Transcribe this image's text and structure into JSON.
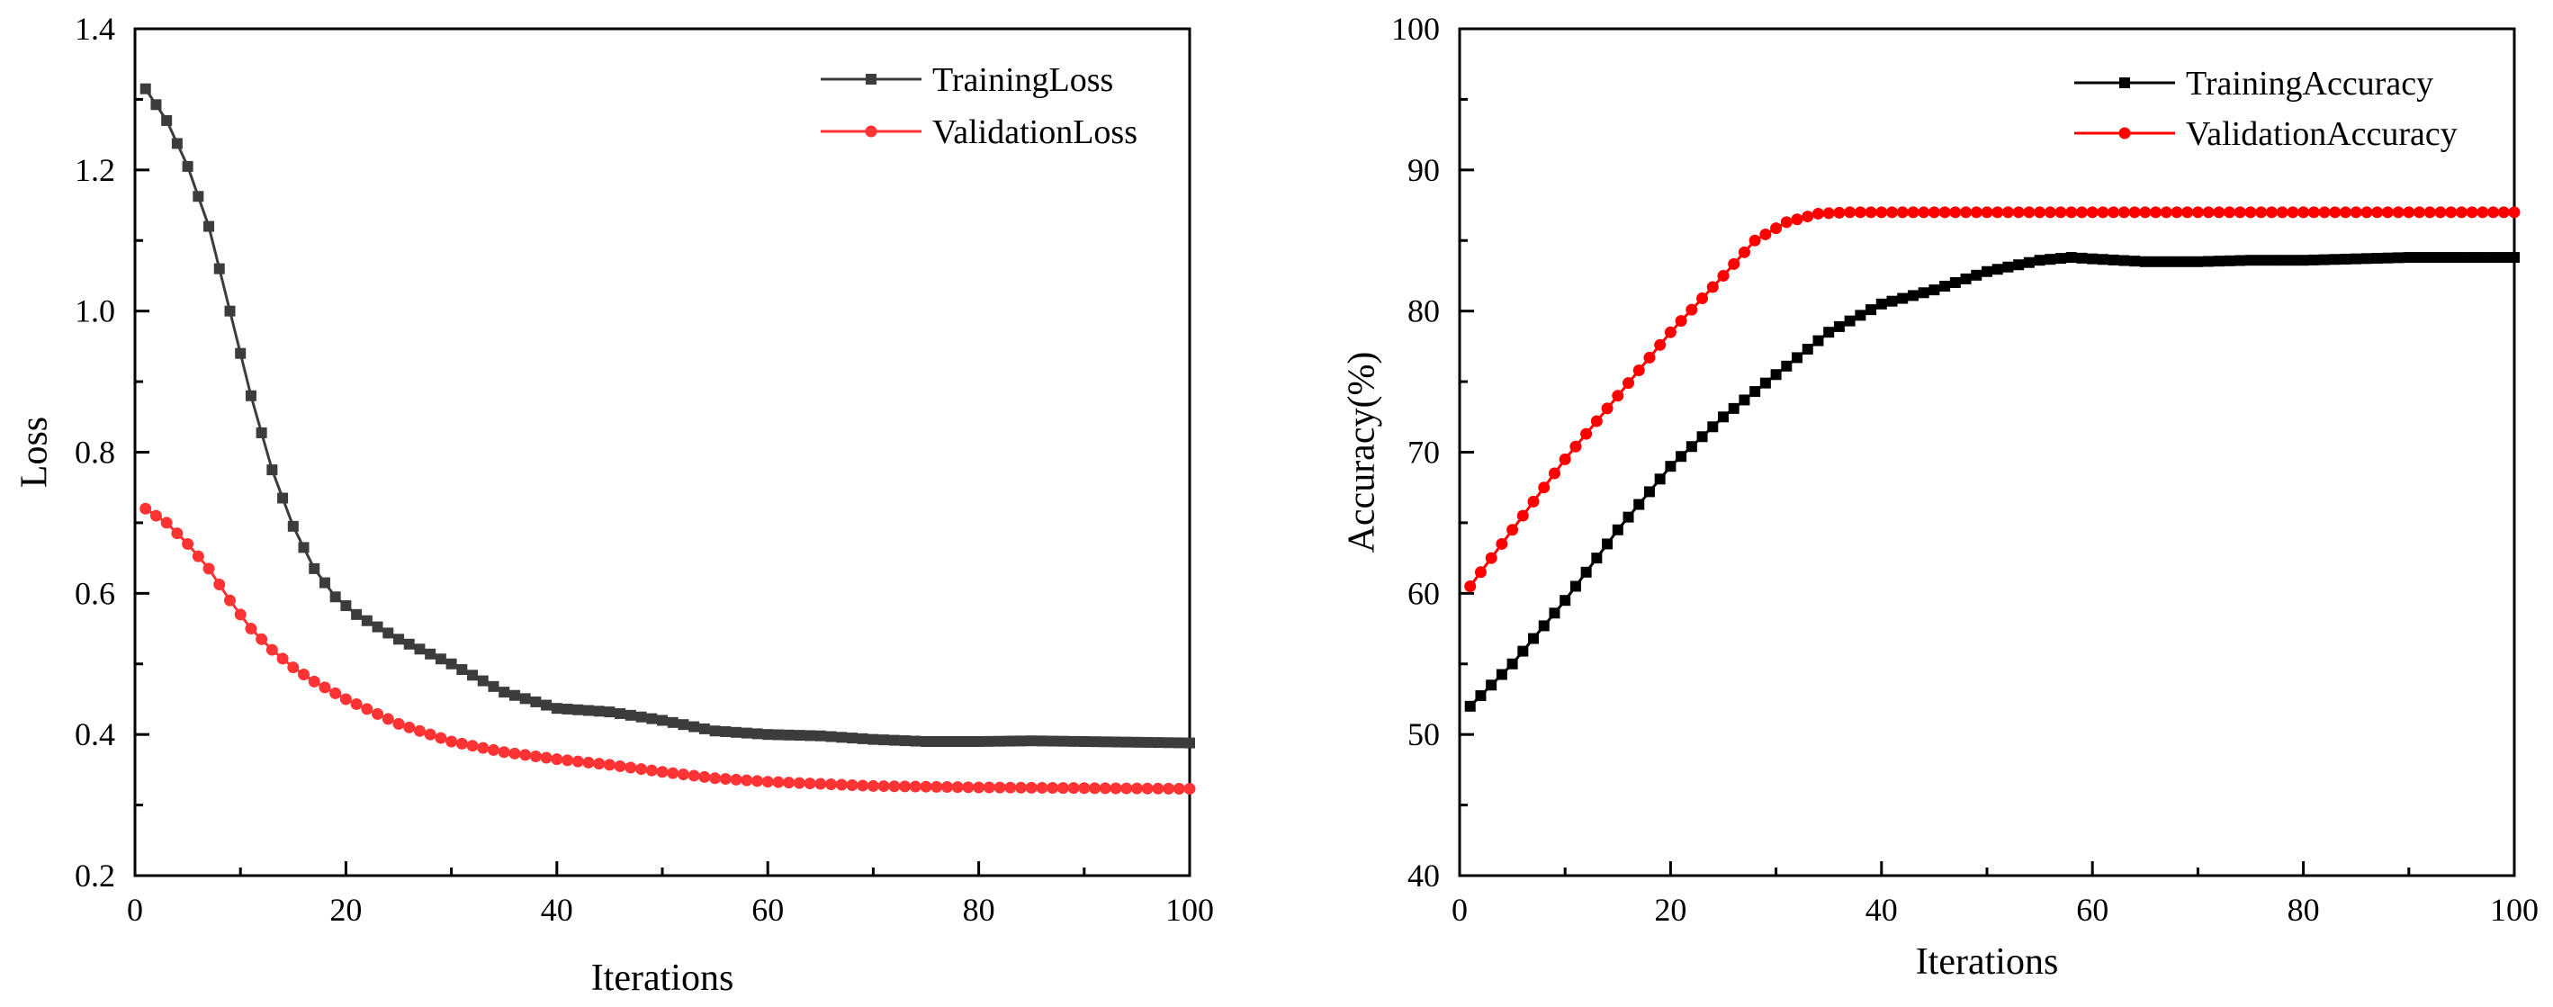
{
  "chart_data": [
    {
      "type": "line",
      "title": "",
      "xlabel": "Iterations",
      "ylabel": "Loss",
      "xlim": [
        0,
        100
      ],
      "ylim": [
        0.2,
        1.4
      ],
      "xticks": [
        0,
        20,
        40,
        60,
        80,
        100
      ],
      "yticks": [
        0.2,
        0.4,
        0.6,
        0.8,
        1.0,
        1.2,
        1.4
      ],
      "ytick_labels": [
        "0.2",
        "0.4",
        "0.6",
        "0.8",
        "1.0",
        "1.2",
        "1.4"
      ],
      "legend_position": "top-right",
      "series": [
        {
          "name": "TrainingLoss",
          "color": "#3c3c3c",
          "marker": "square",
          "points": [
            [
              1,
              1.315
            ],
            [
              3,
              1.27
            ],
            [
              5,
              1.205
            ],
            [
              7,
              1.12
            ],
            [
              9,
              1.0
            ],
            [
              11,
              0.88
            ],
            [
              13,
              0.775
            ],
            [
              15,
              0.695
            ],
            [
              17,
              0.635
            ],
            [
              19,
              0.595
            ],
            [
              21,
              0.57
            ],
            [
              25,
              0.535
            ],
            [
              30,
              0.5
            ],
            [
              35,
              0.46
            ],
            [
              40,
              0.437
            ],
            [
              45,
              0.432
            ],
            [
              50,
              0.42
            ],
            [
              55,
              0.405
            ],
            [
              60,
              0.4
            ],
            [
              65,
              0.398
            ],
            [
              70,
              0.393
            ],
            [
              75,
              0.39
            ],
            [
              80,
              0.39
            ],
            [
              85,
              0.391
            ],
            [
              90,
              0.39
            ],
            [
              95,
              0.389
            ],
            [
              100,
              0.388
            ]
          ]
        },
        {
          "name": "ValidationLoss",
          "color": "#ff3333",
          "marker": "circle",
          "points": [
            [
              1,
              0.72
            ],
            [
              3,
              0.7
            ],
            [
              5,
              0.67
            ],
            [
              7,
              0.635
            ],
            [
              9,
              0.59
            ],
            [
              11,
              0.55
            ],
            [
              13,
              0.52
            ],
            [
              15,
              0.495
            ],
            [
              17,
              0.475
            ],
            [
              20,
              0.45
            ],
            [
              25,
              0.415
            ],
            [
              30,
              0.39
            ],
            [
              35,
              0.375
            ],
            [
              40,
              0.365
            ],
            [
              45,
              0.357
            ],
            [
              50,
              0.347
            ],
            [
              55,
              0.338
            ],
            [
              60,
              0.333
            ],
            [
              65,
              0.33
            ],
            [
              70,
              0.327
            ],
            [
              75,
              0.326
            ],
            [
              80,
              0.325
            ],
            [
              90,
              0.324
            ],
            [
              100,
              0.323
            ]
          ]
        }
      ]
    },
    {
      "type": "line",
      "title": "",
      "xlabel": "Iterations",
      "ylabel": "Accuracy(%)",
      "xlim": [
        0,
        100
      ],
      "ylim": [
        40,
        100
      ],
      "xticks": [
        0,
        20,
        40,
        60,
        80,
        100
      ],
      "yticks": [
        40,
        50,
        60,
        70,
        80,
        90,
        100
      ],
      "ytick_labels": [
        "40",
        "50",
        "60",
        "70",
        "80",
        "90",
        "100"
      ],
      "legend_position": "top-right",
      "series": [
        {
          "name": "TrainingAccuracy",
          "color": "#000000",
          "marker": "square",
          "points": [
            [
              1,
              52
            ],
            [
              5,
              55
            ],
            [
              10,
              59.5
            ],
            [
              15,
              64.5
            ],
            [
              20,
              69
            ],
            [
              25,
              72.5
            ],
            [
              30,
              75.5
            ],
            [
              35,
              78.5
            ],
            [
              40,
              80.5
            ],
            [
              45,
              81.5
            ],
            [
              50,
              82.8
            ],
            [
              55,
              83.6
            ],
            [
              58,
              83.8
            ],
            [
              60,
              83.7
            ],
            [
              65,
              83.5
            ],
            [
              70,
              83.5
            ],
            [
              75,
              83.6
            ],
            [
              80,
              83.6
            ],
            [
              85,
              83.7
            ],
            [
              90,
              83.8
            ],
            [
              95,
              83.8
            ],
            [
              100,
              83.8
            ]
          ]
        },
        {
          "name": "ValidationAccuracy",
          "color": "#ff0000",
          "marker": "circle",
          "points": [
            [
              1,
              60.5
            ],
            [
              5,
              64.5
            ],
            [
              10,
              69.5
            ],
            [
              15,
              74
            ],
            [
              20,
              78.5
            ],
            [
              25,
              82.5
            ],
            [
              28,
              85
            ],
            [
              31,
              86.3
            ],
            [
              34,
              86.9
            ],
            [
              37,
              87
            ],
            [
              40,
              87
            ],
            [
              50,
              87
            ],
            [
              60,
              87
            ],
            [
              70,
              87
            ],
            [
              80,
              87
            ],
            [
              90,
              87
            ],
            [
              100,
              87
            ]
          ]
        }
      ]
    }
  ]
}
